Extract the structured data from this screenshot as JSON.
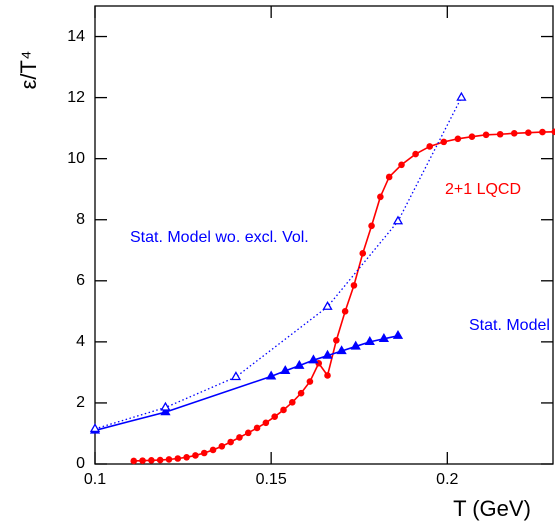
{
  "chart_data": {
    "type": "line",
    "x_label": "T (GeV)",
    "y_label": "ε/T⁴",
    "xlim": [
      0.1,
      0.23
    ],
    "ylim": [
      0,
      15
    ],
    "xticks": [
      0.1,
      0.15,
      0.2
    ],
    "yticks": [
      0,
      2,
      4,
      6,
      8,
      10,
      12,
      14
    ],
    "series": [
      {
        "name": "2+1 LQCD",
        "color": "#ff0000",
        "marker": "circle",
        "dash": "solid",
        "x": [
          0.111,
          0.1135,
          0.116,
          0.1185,
          0.121,
          0.1235,
          0.126,
          0.1285,
          0.131,
          0.1335,
          0.136,
          0.1385,
          0.141,
          0.1435,
          0.146,
          0.1485,
          0.151,
          0.1535,
          0.156,
          0.1585,
          0.161,
          0.1635,
          0.166,
          0.1685,
          0.171,
          0.1735,
          0.176,
          0.1785,
          0.181,
          0.1835,
          0.187,
          0.191,
          0.195,
          0.199,
          0.203,
          0.207,
          0.211,
          0.215,
          0.219,
          0.223,
          0.227,
          0.2305
        ],
        "values": [
          0.1,
          0.11,
          0.12,
          0.13,
          0.15,
          0.18,
          0.22,
          0.28,
          0.36,
          0.46,
          0.58,
          0.72,
          0.87,
          1.02,
          1.18,
          1.35,
          1.55,
          1.77,
          2.02,
          2.32,
          2.7,
          3.3,
          2.9,
          4.05,
          5.0,
          5.85,
          6.9,
          7.8,
          8.75,
          9.4,
          9.8,
          10.15,
          10.4,
          10.55,
          10.65,
          10.72,
          10.78,
          10.8,
          10.83,
          10.85,
          10.87,
          10.88
        ]
      },
      {
        "name": "Stat. Model",
        "color": "#0000ff",
        "marker": "triangle",
        "dash": "solid",
        "x": [
          0.1,
          0.12,
          0.15,
          0.154,
          0.158,
          0.162,
          0.166,
          0.17,
          0.174,
          0.178,
          0.182,
          0.186
        ],
        "values": [
          1.1,
          1.7,
          2.87,
          3.05,
          3.22,
          3.4,
          3.55,
          3.7,
          3.85,
          4.0,
          4.1,
          4.2
        ]
      },
      {
        "name": "Stat. Model wo. excl. Vol.",
        "color": "#0000ff",
        "marker": "open-triangle",
        "dash": "dotted",
        "x": [
          0.1,
          0.12,
          0.14,
          0.166,
          0.186,
          0.204
        ],
        "values": [
          1.15,
          1.85,
          2.85,
          5.15,
          7.95,
          12.0
        ]
      }
    ]
  }
}
